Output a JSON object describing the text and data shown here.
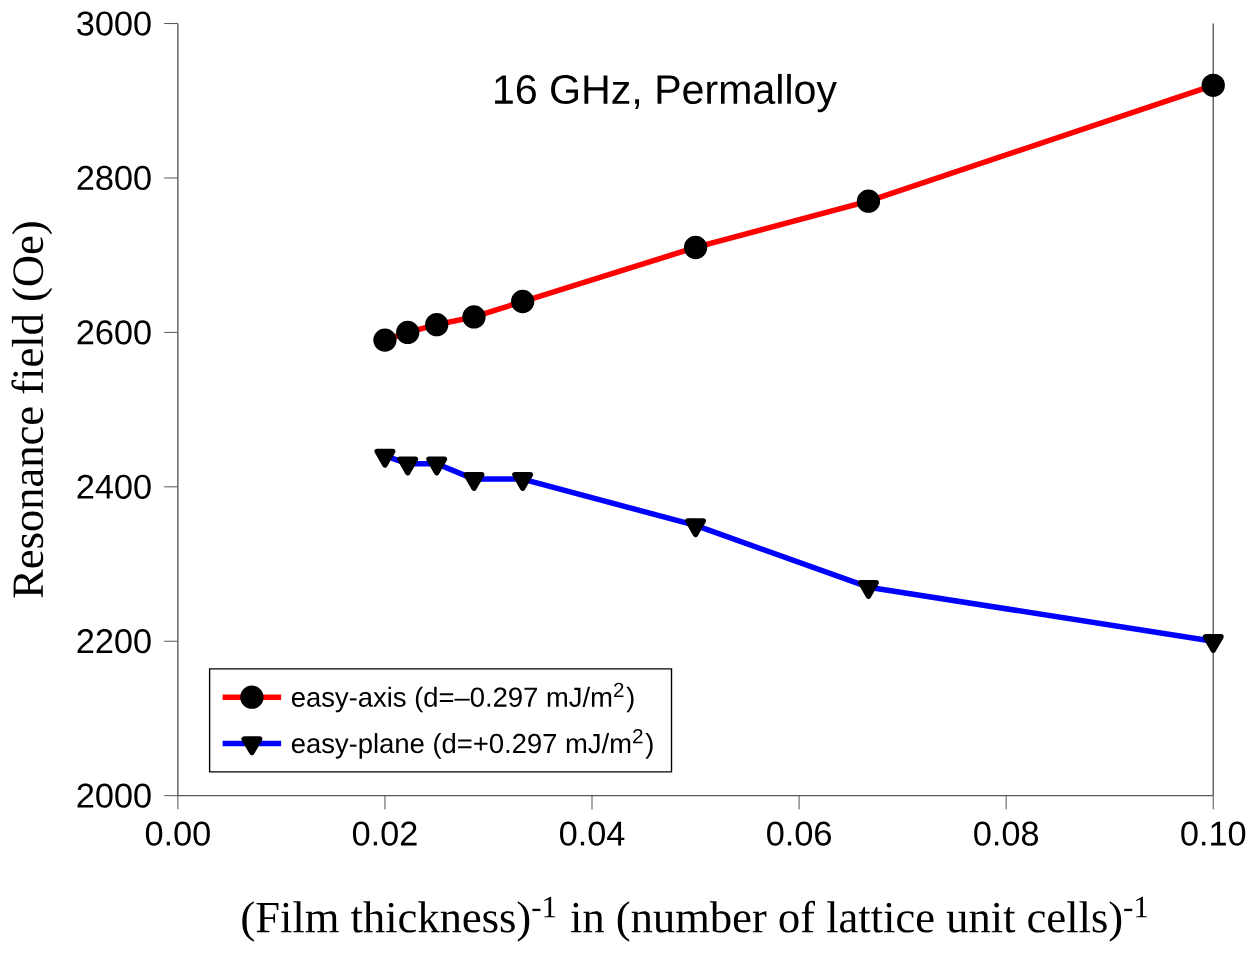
{
  "chart_data": {
    "type": "line",
    "xlabel": "(Film thickness)$^{-1}$ in (number of lattice unit cells)$^{-1}$",
    "ylabel": "Resonance field (Oe)",
    "annotations": [
      "16 GHz, Permalloy"
    ],
    "x": [
      0.02,
      0.0222,
      0.025,
      0.0286,
      0.0333,
      0.05,
      0.0667,
      0.1
    ],
    "series": [
      {
        "name": "easy-axis (d=–0.297 mJ/m$^{2}$)",
        "color": "#ff0000",
        "marker": "circle",
        "values": [
          2590,
          2600,
          2610,
          2620,
          2640,
          2710,
          2770,
          2920
        ]
      },
      {
        "name": "easy-plane (d=+0.297 mJ/m$^{2}$)",
        "color": "#0000ff",
        "marker": "triangle",
        "values": [
          2440,
          2430,
          2430,
          2410,
          2410,
          2350,
          2270,
          2200
        ]
      }
    ],
    "xlim": [
      0.0,
      0.1
    ],
    "ylim": [
      2000,
      3000
    ],
    "xticks": [
      {
        "value": 0.0,
        "label": "0.00"
      },
      {
        "value": 0.02,
        "label": "0.02"
      },
      {
        "value": 0.04,
        "label": "0.04"
      },
      {
        "value": 0.06,
        "label": "0.06"
      },
      {
        "value": 0.08,
        "label": "0.08"
      },
      {
        "value": 0.1,
        "label": "0.10"
      }
    ],
    "yticks": [
      2000,
      2200,
      2400,
      2600,
      2800,
      3000
    ],
    "grid": false,
    "legend": "bottom left",
    "line_style": "solid"
  }
}
